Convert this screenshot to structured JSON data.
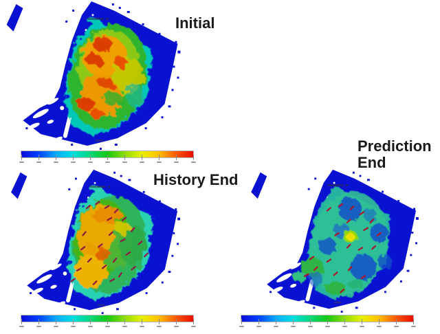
{
  "figure": {
    "kind": "reservoir-simulation-property-maps",
    "background": "#ffffff"
  },
  "panels": [
    {
      "id": "initial",
      "title": "Initial",
      "title_lines": [
        "Initial"
      ]
    },
    {
      "id": "history-end",
      "title": "History End",
      "title_lines": [
        "History End"
      ]
    },
    {
      "id": "prediction-end",
      "title": "Prediction End",
      "title_lines": [
        "Prediction",
        "End"
      ]
    }
  ],
  "colorbar": {
    "tick_count": 11,
    "labels_legible": false,
    "gradient_stops": [
      "#0d0dd8",
      "#0040ff",
      "#00a8ff",
      "#00e0e0",
      "#00d87c",
      "#14c814",
      "#8cdc00",
      "#e8f000",
      "#ffc000",
      "#ff5a00",
      "#e80c00"
    ]
  },
  "colors": {
    "ocean_blue": "#0a12d2",
    "fringe_cyan": "#00c8b8",
    "hot_red": "#dc3c00",
    "title_text": "#1a1a1a",
    "well_marker_history": "#8c1e46",
    "well_marker_prediction": "#a81830"
  }
}
